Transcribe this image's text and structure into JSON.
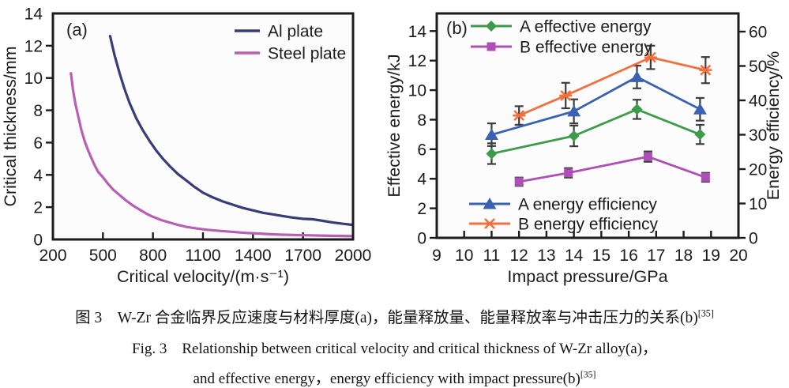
{
  "caption": {
    "line1": "图 3　W-Zr 合金临界反应速度与材料厚度(a)，能量释放量、能量释放率与冲击压力的关系(b)",
    "line1_ref": "[35]",
    "line2": "Fig. 3　Relationship between critical velocity and critical thickness of W-Zr alloy(a)，",
    "line3": "and effective energy，energy efficiency with impact pressure(b)",
    "line3_ref": "[35]"
  },
  "colors": {
    "ink": "#1c1c1c",
    "error_bar": "#3d3d3d",
    "plot_background": "#fcfcfc"
  },
  "chart_data": [
    {
      "id": "a",
      "type": "line",
      "panel_label": "(a)",
      "xlabel": "Critical velocity/(m·s⁻¹)",
      "ylabel": "Critical thickness/mm",
      "xlim": [
        200,
        2000
      ],
      "ylim": [
        0,
        14
      ],
      "xticks": [
        200,
        500,
        800,
        1100,
        1400,
        1700,
        2000
      ],
      "yticks": [
        0,
        2,
        4,
        6,
        8,
        10,
        12,
        14
      ],
      "grid": false,
      "legend_position": "top-right",
      "series": [
        {
          "name": "Al plate",
          "color": "#383c78",
          "x": [
            543,
            570,
            600,
            630,
            660,
            700,
            740,
            780,
            820,
            860,
            900,
            950,
            1000,
            1050,
            1100,
            1160,
            1220,
            1280,
            1340,
            1400,
            1460,
            1520,
            1580,
            1640,
            1700,
            1760,
            1820,
            1880,
            1940,
            2000
          ],
          "y": [
            12.6,
            11.4,
            10.3,
            9.3,
            8.45,
            7.5,
            6.75,
            6.1,
            5.5,
            5.0,
            4.55,
            4.05,
            3.65,
            3.25,
            2.9,
            2.6,
            2.35,
            2.15,
            1.95,
            1.8,
            1.65,
            1.55,
            1.45,
            1.35,
            1.28,
            1.25,
            1.15,
            1.05,
            0.97,
            0.9
          ]
        },
        {
          "name": "Steel plate",
          "color": "#b85fb4",
          "x": [
            308,
            320,
            335,
            350,
            370,
            390,
            410,
            430,
            450,
            470,
            500,
            530,
            560,
            600,
            640,
            680,
            720,
            760,
            800,
            850,
            900,
            950,
            1000,
            1060,
            1120,
            1180,
            1240,
            1300,
            1360,
            1420,
            1480,
            1560,
            1640,
            1720,
            1800,
            1900,
            2000
          ],
          "y": [
            10.3,
            9.3,
            8.4,
            7.7,
            6.8,
            6.1,
            5.55,
            5.05,
            4.6,
            4.2,
            3.85,
            3.45,
            3.1,
            2.75,
            2.4,
            2.1,
            1.85,
            1.6,
            1.4,
            1.2,
            1.05,
            0.9,
            0.78,
            0.68,
            0.6,
            0.55,
            0.5,
            0.45,
            0.4,
            0.37,
            0.34,
            0.3,
            0.28,
            0.26,
            0.24,
            0.22,
            0.2
          ]
        }
      ]
    },
    {
      "id": "b",
      "type": "line-errorbar",
      "panel_label": "(b)",
      "xlabel": "Impact pressure/GPa",
      "ylabel_left": "Effective energy/kJ",
      "ylabel_right": "Energy efficiency/%",
      "xlim": [
        9,
        20
      ],
      "ylim_left": [
        0,
        14
      ],
      "ylim_right": [
        0,
        60
      ],
      "xticks": [
        9,
        10,
        11,
        12,
        13,
        14,
        15,
        16,
        17,
        18,
        19,
        20
      ],
      "yticks_left": [
        0,
        2,
        4,
        6,
        8,
        10,
        12,
        14
      ],
      "yticks_right": [
        0,
        10,
        20,
        30,
        40,
        50,
        60
      ],
      "grid": false,
      "series": [
        {
          "name": "A effective energy",
          "axis": "left",
          "marker": "diamond",
          "color": "#3f9b4c",
          "x": [
            11,
            14,
            16.3,
            18.6
          ],
          "y": [
            5.7,
            6.9,
            8.7,
            7.0
          ],
          "yerr": [
            0.7,
            0.7,
            0.65,
            0.65
          ]
        },
        {
          "name": "B effective energy",
          "axis": "left",
          "marker": "square",
          "color": "#ae4fb5",
          "x": [
            12,
            13.8,
            16.7,
            18.8
          ],
          "y": [
            3.8,
            4.4,
            5.5,
            4.1
          ],
          "yerr": [
            0.28,
            0.32,
            0.35,
            0.3
          ]
        },
        {
          "name": "A energy efficiency",
          "axis": "right",
          "marker": "triangle",
          "color": "#3b62b2",
          "x": [
            11,
            14,
            16.3,
            18.6
          ],
          "y": [
            30,
            36.8,
            46.8,
            37.4
          ],
          "yerr": [
            3.3,
            3.5,
            3.3,
            3.3
          ]
        },
        {
          "name": "B energy efficiency",
          "axis": "right",
          "marker": "xcross",
          "color": "#f1703d",
          "x": [
            12,
            13.7,
            16.8,
            18.8
          ],
          "y": [
            35.6,
            41.4,
            52.5,
            48.8
          ],
          "yerr": [
            2.7,
            3.7,
            3.4,
            3.8
          ]
        }
      ],
      "legend_top": [
        "A effective energy",
        "B effective energy"
      ],
      "legend_bottom": [
        "A energy efficiency",
        "B energy efficiency"
      ]
    }
  ]
}
